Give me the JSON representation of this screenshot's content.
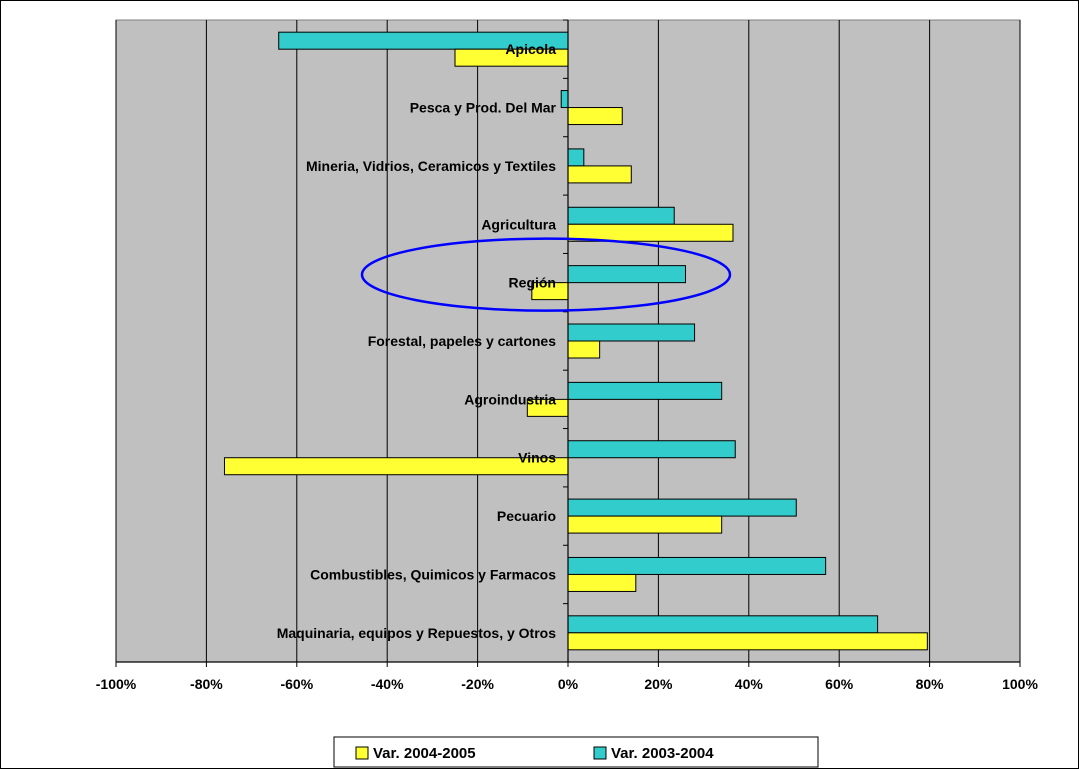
{
  "chart_data": {
    "type": "bar",
    "orientation": "horizontal",
    "categories": [
      "Apicola",
      "Pesca y Prod. Del Mar",
      "Mineria, Vidrios, Ceramicos y Textiles",
      "Agricultura",
      "Región",
      "Forestal, papeles y cartones",
      "Agroindustria",
      "Vinos",
      "Pecuario",
      "Combustibles, Quimicos y Farmacos",
      "Maquinaria, equipos y Repuestos, y Otros"
    ],
    "series": [
      {
        "name": "Var. 2003-2004",
        "color": "#33CCCC",
        "values": [
          -64,
          -1.5,
          3.5,
          23.5,
          26,
          28,
          34,
          37,
          50.5,
          57,
          68.5
        ]
      },
      {
        "name": "Var. 2004-2005",
        "color": "#FFFF33",
        "values": [
          -25,
          12,
          14,
          36.5,
          -8,
          7,
          -9,
          -76,
          34,
          15,
          79.5
        ]
      }
    ],
    "xlim": [
      -100,
      100
    ],
    "xticks": [
      "-100%",
      "-80%",
      "-60%",
      "-40%",
      "-20%",
      "0%",
      "20%",
      "40%",
      "60%",
      "80%",
      "100%"
    ],
    "legend": {
      "placement": "bottom",
      "entries": [
        "Var. 2004-2005",
        "Var. 2003-2004"
      ]
    },
    "grid": true,
    "plot_background": "#C0C0C0",
    "highlight": {
      "category": "Región",
      "shape": "ellipse",
      "color": "#0000FF"
    },
    "title": "",
    "xlabel": "",
    "ylabel": ""
  }
}
